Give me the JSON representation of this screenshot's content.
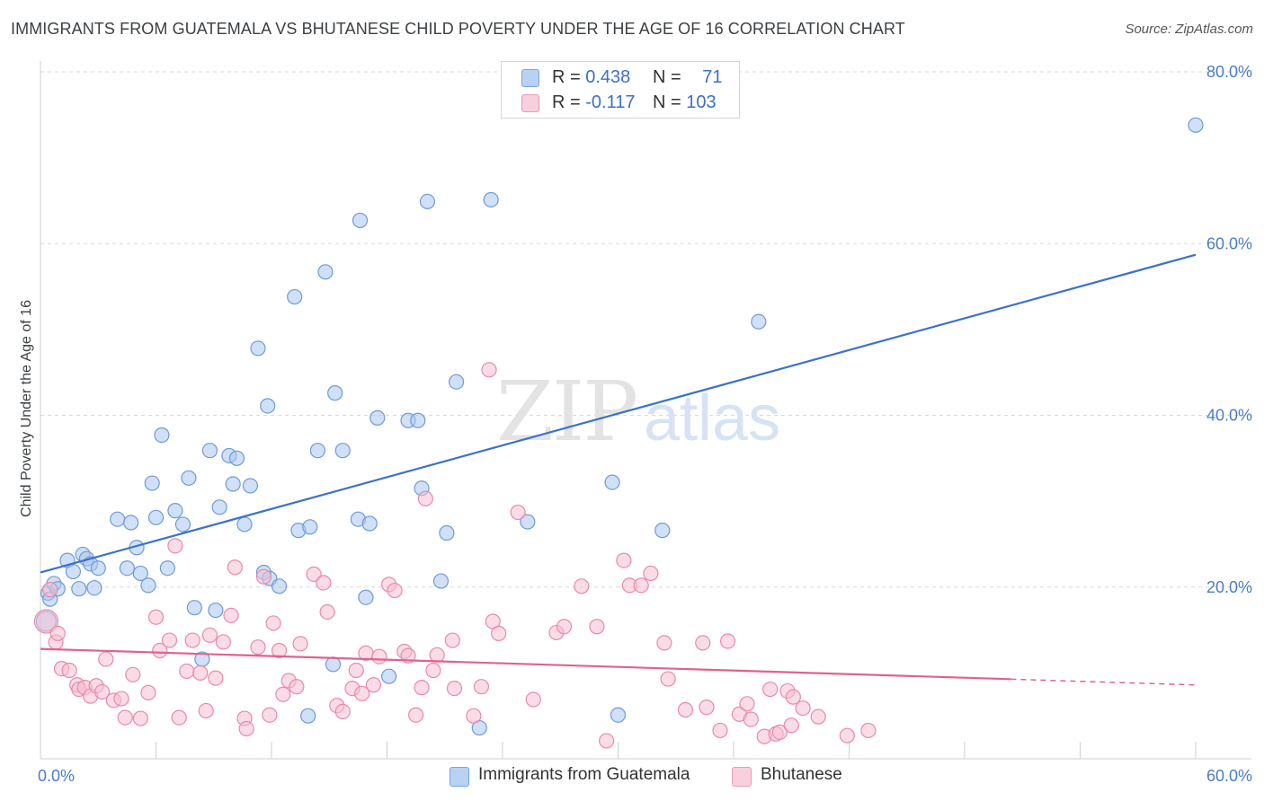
{
  "title": "IMMIGRANTS FROM GUATEMALA VS BHUTANESE CHILD POVERTY UNDER THE AGE OF 16 CORRELATION CHART",
  "source": "Source: ZipAtlas.com",
  "watermark": {
    "zip": "ZIP",
    "atlas": "atlas"
  },
  "colors": {
    "blue_fill": "#a9c6f0",
    "blue_stroke": "#6f9ad9",
    "blue_line": "#3a72cc",
    "pink_fill": "#f6bfd1",
    "pink_stroke": "#e98aa8",
    "pink_line": "#e0628e",
    "grid": "#d9d9d9",
    "tick_text": "#4a7cc9"
  },
  "legend_top": [
    {
      "r_label": "R = ",
      "r_value": "0.438",
      "n_label": "N = ",
      "n_value": "71"
    },
    {
      "r_label": "R = ",
      "r_value": "-0.117",
      "n_label": "N = ",
      "n_value": "103"
    }
  ],
  "legend_bottom": [
    {
      "label": "Immigrants from Guatemala"
    },
    {
      "label": "Bhutanese"
    }
  ],
  "chart_data": {
    "type": "scatter",
    "title": "IMMIGRANTS FROM GUATEMALA VS BHUTANESE CHILD POVERTY UNDER THE AGE OF 16 CORRELATION CHART",
    "xlabel": "",
    "ylabel": "Child Poverty Under the Age of 16",
    "xlim": [
      0,
      60
    ],
    "ylim": [
      0,
      80
    ],
    "x_tick_labels": [
      "0.0%",
      "60.0%"
    ],
    "y_ticks": [
      {
        "value": 20,
        "label": "20.0%"
      },
      {
        "value": 40,
        "label": "40.0%"
      },
      {
        "value": 60,
        "label": "60.0%"
      },
      {
        "value": 80,
        "label": "80.0%"
      }
    ],
    "grid": true,
    "legend": "top-center",
    "series": [
      {
        "name": "Immigrants from Guatemala",
        "color": "#a9c6f0",
        "trend": {
          "x": [
            0,
            60
          ],
          "y": [
            21.7,
            58.7
          ],
          "dashed_from": null
        },
        "points": [
          [
            0.3,
            16.0
          ],
          [
            0.4,
            19.3
          ],
          [
            0.5,
            18.6
          ],
          [
            0.7,
            20.4
          ],
          [
            0.9,
            19.8
          ],
          [
            1.4,
            23.1
          ],
          [
            1.7,
            21.8
          ],
          [
            2.0,
            19.8
          ],
          [
            2.2,
            23.8
          ],
          [
            2.4,
            23.3
          ],
          [
            2.6,
            22.7
          ],
          [
            2.8,
            19.9
          ],
          [
            3.0,
            22.2
          ],
          [
            4.0,
            27.9
          ],
          [
            4.5,
            22.2
          ],
          [
            4.7,
            27.5
          ],
          [
            5.0,
            24.6
          ],
          [
            5.2,
            21.6
          ],
          [
            5.6,
            20.2
          ],
          [
            5.8,
            32.1
          ],
          [
            6.0,
            28.1
          ],
          [
            6.3,
            37.7
          ],
          [
            6.6,
            22.2
          ],
          [
            7.0,
            28.9
          ],
          [
            7.4,
            27.3
          ],
          [
            7.7,
            32.7
          ],
          [
            8.0,
            17.6
          ],
          [
            8.4,
            11.6
          ],
          [
            8.8,
            35.9
          ],
          [
            9.1,
            17.3
          ],
          [
            9.3,
            29.3
          ],
          [
            9.8,
            35.3
          ],
          [
            10.0,
            32.0
          ],
          [
            10.2,
            35.0
          ],
          [
            10.6,
            27.3
          ],
          [
            10.9,
            31.8
          ],
          [
            11.3,
            47.8
          ],
          [
            11.6,
            21.7
          ],
          [
            11.8,
            41.1
          ],
          [
            11.9,
            21.0
          ],
          [
            12.4,
            20.1
          ],
          [
            13.2,
            53.8
          ],
          [
            13.4,
            26.6
          ],
          [
            13.9,
            5.0
          ],
          [
            14.0,
            27.0
          ],
          [
            14.4,
            35.9
          ],
          [
            14.8,
            56.7
          ],
          [
            15.2,
            11.0
          ],
          [
            15.3,
            42.6
          ],
          [
            15.7,
            35.9
          ],
          [
            16.5,
            27.9
          ],
          [
            16.6,
            62.7
          ],
          [
            16.9,
            18.8
          ],
          [
            17.1,
            27.4
          ],
          [
            17.5,
            39.7
          ],
          [
            18.1,
            9.6
          ],
          [
            19.1,
            39.4
          ],
          [
            19.6,
            39.4
          ],
          [
            19.8,
            31.5
          ],
          [
            20.1,
            64.9
          ],
          [
            20.8,
            20.7
          ],
          [
            21.1,
            26.3
          ],
          [
            21.6,
            43.9
          ],
          [
            22.8,
            3.6
          ],
          [
            23.4,
            65.1
          ],
          [
            25.3,
            27.6
          ],
          [
            29.7,
            32.2
          ],
          [
            30.0,
            5.1
          ],
          [
            32.3,
            26.6
          ],
          [
            37.3,
            50.9
          ],
          [
            60.0,
            73.8
          ]
        ]
      },
      {
        "name": "Bhutanese",
        "color": "#f6bfd1",
        "trend": {
          "x": [
            0,
            60
          ],
          "y": [
            12.8,
            8.6
          ],
          "dashed_from": 50.4
        },
        "points": [
          [
            0.3,
            16.0
          ],
          [
            0.5,
            19.7
          ],
          [
            0.8,
            13.6
          ],
          [
            0.9,
            14.6
          ],
          [
            1.1,
            10.5
          ],
          [
            1.5,
            10.3
          ],
          [
            1.9,
            8.6
          ],
          [
            2.0,
            8.1
          ],
          [
            2.3,
            8.3
          ],
          [
            2.6,
            7.3
          ],
          [
            2.9,
            8.5
          ],
          [
            3.2,
            7.8
          ],
          [
            3.4,
            11.6
          ],
          [
            3.8,
            6.8
          ],
          [
            4.2,
            7.0
          ],
          [
            4.4,
            4.8
          ],
          [
            4.8,
            9.8
          ],
          [
            5.2,
            4.7
          ],
          [
            5.6,
            7.7
          ],
          [
            6.0,
            16.5
          ],
          [
            6.2,
            12.6
          ],
          [
            6.7,
            13.8
          ],
          [
            7.0,
            24.8
          ],
          [
            7.2,
            4.8
          ],
          [
            7.6,
            10.2
          ],
          [
            7.9,
            13.8
          ],
          [
            8.3,
            10.0
          ],
          [
            8.6,
            5.6
          ],
          [
            8.8,
            14.4
          ],
          [
            9.1,
            9.4
          ],
          [
            9.5,
            13.6
          ],
          [
            9.9,
            16.7
          ],
          [
            10.1,
            22.3
          ],
          [
            10.6,
            4.7
          ],
          [
            10.7,
            3.5
          ],
          [
            11.3,
            13.0
          ],
          [
            11.6,
            21.2
          ],
          [
            11.9,
            5.1
          ],
          [
            12.1,
            15.8
          ],
          [
            12.4,
            12.6
          ],
          [
            12.6,
            7.5
          ],
          [
            12.9,
            9.1
          ],
          [
            13.3,
            8.4
          ],
          [
            13.5,
            13.4
          ],
          [
            14.2,
            21.5
          ],
          [
            14.7,
            20.5
          ],
          [
            14.9,
            17.1
          ],
          [
            15.4,
            6.2
          ],
          [
            15.7,
            5.5
          ],
          [
            16.2,
            8.2
          ],
          [
            16.4,
            10.3
          ],
          [
            16.7,
            7.6
          ],
          [
            16.9,
            12.3
          ],
          [
            17.3,
            8.6
          ],
          [
            17.6,
            11.9
          ],
          [
            18.1,
            20.3
          ],
          [
            18.4,
            19.6
          ],
          [
            18.9,
            12.5
          ],
          [
            19.1,
            12.0
          ],
          [
            19.5,
            5.1
          ],
          [
            19.8,
            8.3
          ],
          [
            20.0,
            30.3
          ],
          [
            20.4,
            10.3
          ],
          [
            20.6,
            12.1
          ],
          [
            21.4,
            13.8
          ],
          [
            21.5,
            8.2
          ],
          [
            22.5,
            5.0
          ],
          [
            22.9,
            8.4
          ],
          [
            23.3,
            45.3
          ],
          [
            23.5,
            16.0
          ],
          [
            23.8,
            14.6
          ],
          [
            24.8,
            28.7
          ],
          [
            25.6,
            6.9
          ],
          [
            26.8,
            14.7
          ],
          [
            27.2,
            15.4
          ],
          [
            28.1,
            20.1
          ],
          [
            28.9,
            15.4
          ],
          [
            29.4,
            2.1
          ],
          [
            30.3,
            23.1
          ],
          [
            30.6,
            20.2
          ],
          [
            31.2,
            20.2
          ],
          [
            31.7,
            21.6
          ],
          [
            32.4,
            13.5
          ],
          [
            32.6,
            9.3
          ],
          [
            33.5,
            5.7
          ],
          [
            34.4,
            13.5
          ],
          [
            34.6,
            6.0
          ],
          [
            35.3,
            3.3
          ],
          [
            35.7,
            13.7
          ],
          [
            36.3,
            5.2
          ],
          [
            36.7,
            6.4
          ],
          [
            36.9,
            4.6
          ],
          [
            37.6,
            2.6
          ],
          [
            37.9,
            8.1
          ],
          [
            38.2,
            2.9
          ],
          [
            38.4,
            3.1
          ],
          [
            38.8,
            7.9
          ],
          [
            39.0,
            3.9
          ],
          [
            39.1,
            7.2
          ],
          [
            39.6,
            5.9
          ],
          [
            40.4,
            4.9
          ],
          [
            41.9,
            2.7
          ],
          [
            43.0,
            3.3
          ]
        ]
      }
    ]
  }
}
